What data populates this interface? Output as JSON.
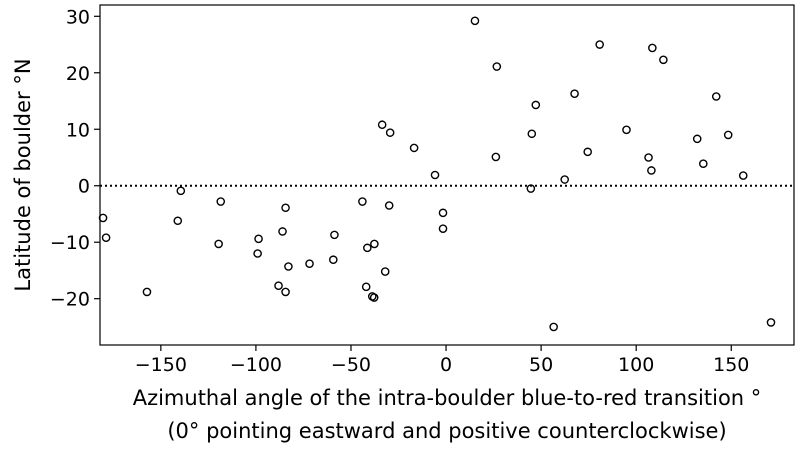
{
  "chart_data": {
    "type": "scatter",
    "xlabel": "Azimuthal angle of the intra-boulder blue-to-red transition °",
    "xlabel2": "(0° pointing eastward and positive counterclockwise)",
    "ylabel": "Latitude of boulder °N",
    "color": "#000000",
    "hline": 0,
    "xlim": [
      -182,
      183
    ],
    "ylim": [
      -28.2,
      32
    ],
    "xticks": [
      {
        "value": -150,
        "label": "−150"
      },
      {
        "value": -100,
        "label": "−100"
      },
      {
        "value": -50,
        "label": "−50"
      },
      0,
      50,
      100,
      150
    ],
    "yticks": [
      {
        "value": -20,
        "label": "−20"
      },
      {
        "value": -10,
        "label": "−10"
      },
      0,
      10,
      20,
      30
    ],
    "x": [
      -180.4,
      -178.8,
      -157.3,
      -141.1,
      -139.5,
      -118.5,
      -119.6,
      -98.6,
      -99.1,
      -84.4,
      -86.0,
      -82.9,
      -88.1,
      -84.4,
      -71.8,
      -58.7,
      -59.3,
      -44.0,
      -41.4,
      -37.7,
      -42.0,
      -38.8,
      -37.8,
      -32.0,
      -29.9,
      -33.6,
      -29.4,
      -16.8,
      -5.8,
      -1.6,
      -1.6,
      15.2,
      26.7,
      26.2,
      45.1,
      47.2,
      44.6,
      56.6,
      62.4,
      67.6,
      74.5,
      80.8,
      94.9,
      106.5,
      108.0,
      108.5,
      114.3,
      132.1,
      135.3,
      142.1,
      148.4,
      156.3,
      170.9
    ],
    "values": [
      -5.7,
      -9.2,
      -18.8,
      -6.2,
      -0.9,
      -2.8,
      -10.3,
      -9.4,
      -12.0,
      -3.9,
      -8.1,
      -14.3,
      -17.7,
      -18.8,
      -13.8,
      -8.7,
      -13.1,
      -2.8,
      -11.0,
      -10.3,
      -17.9,
      -19.6,
      -19.8,
      -15.2,
      -3.5,
      10.8,
      9.4,
      6.7,
      1.9,
      -4.8,
      -7.6,
      29.2,
      21.1,
      5.1,
      9.2,
      14.3,
      -0.5,
      -25.0,
      1.1,
      16.3,
      6.0,
      25.0,
      9.9,
      5.0,
      2.7,
      24.4,
      22.3,
      8.3,
      3.9,
      15.8,
      9.0,
      1.8,
      -24.2
    ]
  }
}
